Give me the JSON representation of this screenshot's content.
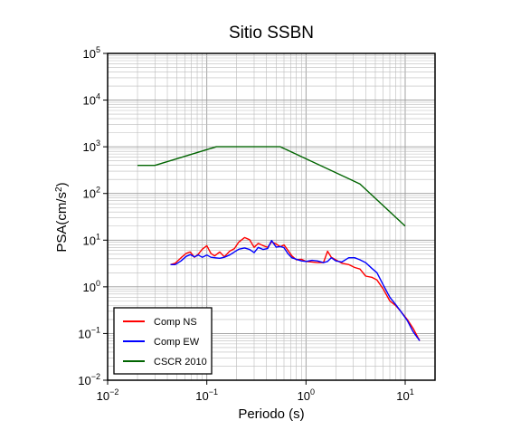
{
  "chart_data": {
    "type": "line",
    "title": "Sitio SSBN",
    "xlabel": "Periodo (s)",
    "ylabel": {
      "base": "PSA(cm/s",
      "sup": "2",
      "tail": ")"
    },
    "x_scale": "log",
    "y_scale": "log",
    "xlim": [
      0.01,
      20
    ],
    "ylim": [
      0.01,
      100000
    ],
    "grid": true,
    "x_ticks": [
      {
        "value": 0.01,
        "base": "10",
        "exp": "−2"
      },
      {
        "value": 0.1,
        "base": "10",
        "exp": "−1"
      },
      {
        "value": 1,
        "base": "10",
        "exp": "0"
      },
      {
        "value": 10,
        "base": "10",
        "exp": "1"
      }
    ],
    "y_ticks": [
      {
        "value": 0.01,
        "base": "10",
        "exp": "−2"
      },
      {
        "value": 0.1,
        "base": "10",
        "exp": "−1"
      },
      {
        "value": 1,
        "base": "10",
        "exp": "0"
      },
      {
        "value": 10,
        "base": "10",
        "exp": "1"
      },
      {
        "value": 100,
        "base": "10",
        "exp": "2"
      },
      {
        "value": 1000,
        "base": "10",
        "exp": "3"
      },
      {
        "value": 10000,
        "base": "10",
        "exp": "4"
      },
      {
        "value": 100000,
        "base": "10",
        "exp": "5"
      }
    ],
    "legend_position": "bottom-left",
    "series": [
      {
        "name": "Comp NS",
        "color": "#ff0000",
        "x": [
          0.043,
          0.048,
          0.055,
          0.062,
          0.068,
          0.075,
          0.082,
          0.09,
          0.1,
          0.11,
          0.12,
          0.135,
          0.15,
          0.17,
          0.19,
          0.21,
          0.24,
          0.27,
          0.3,
          0.33,
          0.37,
          0.41,
          0.45,
          0.5,
          0.55,
          0.6,
          0.66,
          0.72,
          0.8,
          0.9,
          1.0,
          1.15,
          1.3,
          1.5,
          1.65,
          1.8,
          2.0,
          2.3,
          2.7,
          3.1,
          3.5,
          4.0,
          4.6,
          5.2,
          6.0,
          7.0,
          8.0,
          9.0,
          10.5,
          12.0,
          14.0
        ],
        "y": [
          3.0,
          3.2,
          4.2,
          5.2,
          5.6,
          4.3,
          5.0,
          6.4,
          7.6,
          5.2,
          4.6,
          5.6,
          4.4,
          5.8,
          6.6,
          9.1,
          11.4,
          10.2,
          7.0,
          8.5,
          7.6,
          7.0,
          9.2,
          8.3,
          7.2,
          7.9,
          6.0,
          4.6,
          3.8,
          3.9,
          3.5,
          3.4,
          3.3,
          3.3,
          5.8,
          4.3,
          3.8,
          3.2,
          3.0,
          2.6,
          2.4,
          1.7,
          1.6,
          1.4,
          0.9,
          0.5,
          0.4,
          0.3,
          0.2,
          0.13,
          0.07
        ]
      },
      {
        "name": "Comp EW",
        "color": "#0000ff",
        "x": [
          0.043,
          0.048,
          0.055,
          0.062,
          0.068,
          0.075,
          0.082,
          0.09,
          0.1,
          0.11,
          0.12,
          0.135,
          0.15,
          0.17,
          0.19,
          0.21,
          0.24,
          0.27,
          0.3,
          0.33,
          0.37,
          0.41,
          0.45,
          0.5,
          0.55,
          0.6,
          0.66,
          0.72,
          0.8,
          0.9,
          1.0,
          1.15,
          1.3,
          1.5,
          1.65,
          1.8,
          2.0,
          2.3,
          2.7,
          3.1,
          3.5,
          4.0,
          4.6,
          5.2,
          6.0,
          7.0,
          8.0,
          9.0,
          10.5,
          12.0,
          14.0
        ],
        "y": [
          3.0,
          3.0,
          3.6,
          4.5,
          4.9,
          4.4,
          4.8,
          4.3,
          4.8,
          4.3,
          4.2,
          4.1,
          4.3,
          4.8,
          5.6,
          6.4,
          6.8,
          6.3,
          5.4,
          7.0,
          6.3,
          6.6,
          9.8,
          7.1,
          7.3,
          6.9,
          5.1,
          4.2,
          3.9,
          3.6,
          3.5,
          3.7,
          3.6,
          3.3,
          3.5,
          4.2,
          3.6,
          3.4,
          4.2,
          4.2,
          3.8,
          3.3,
          2.5,
          2.0,
          1.1,
          0.6,
          0.42,
          0.3,
          0.19,
          0.11,
          0.07
        ]
      },
      {
        "name": "CSCR 2010",
        "color": "#006400",
        "x": [
          0.02,
          0.03,
          0.125,
          0.55,
          3.5,
          10.0
        ],
        "y": [
          400,
          400,
          1000,
          1000,
          160,
          20
        ]
      }
    ]
  }
}
